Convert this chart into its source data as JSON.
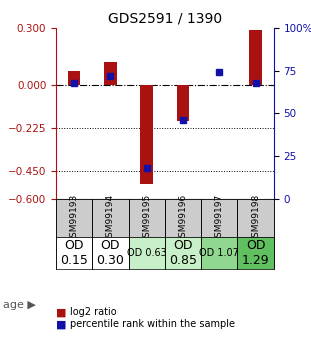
{
  "title": "GDS2591 / 1390",
  "samples": [
    "GSM99193",
    "GSM99194",
    "GSM99195",
    "GSM99196",
    "GSM99197",
    "GSM99198"
  ],
  "log2_ratios": [
    0.07,
    0.12,
    -0.52,
    -0.19,
    0.0,
    0.285
  ],
  "percentile_ranks": [
    68,
    72,
    18,
    46,
    74,
    68
  ],
  "bar_color": "#aa1111",
  "dot_color": "#1111aa",
  "ylim_left": [
    -0.6,
    0.3
  ],
  "ylim_right": [
    0,
    100
  ],
  "yticks_left": [
    0.3,
    0,
    -0.225,
    -0.45,
    -0.6
  ],
  "yticks_right": [
    100,
    75,
    50,
    25,
    0
  ],
  "hlines": [
    -0.225,
    -0.45
  ],
  "age_labels": [
    "OD\n0.15",
    "OD\n0.30",
    "OD 0.63",
    "OD\n0.85",
    "OD 1.07",
    "OD\n1.29"
  ],
  "age_colors": [
    "#ffffff",
    "#ffffff",
    "#c8f0c8",
    "#c8f0c8",
    "#90d890",
    "#60c060"
  ],
  "age_fontsizes": [
    9,
    9,
    7,
    9,
    7,
    9
  ],
  "background_color": "#ffffff",
  "gsm_bg": "#cccccc"
}
